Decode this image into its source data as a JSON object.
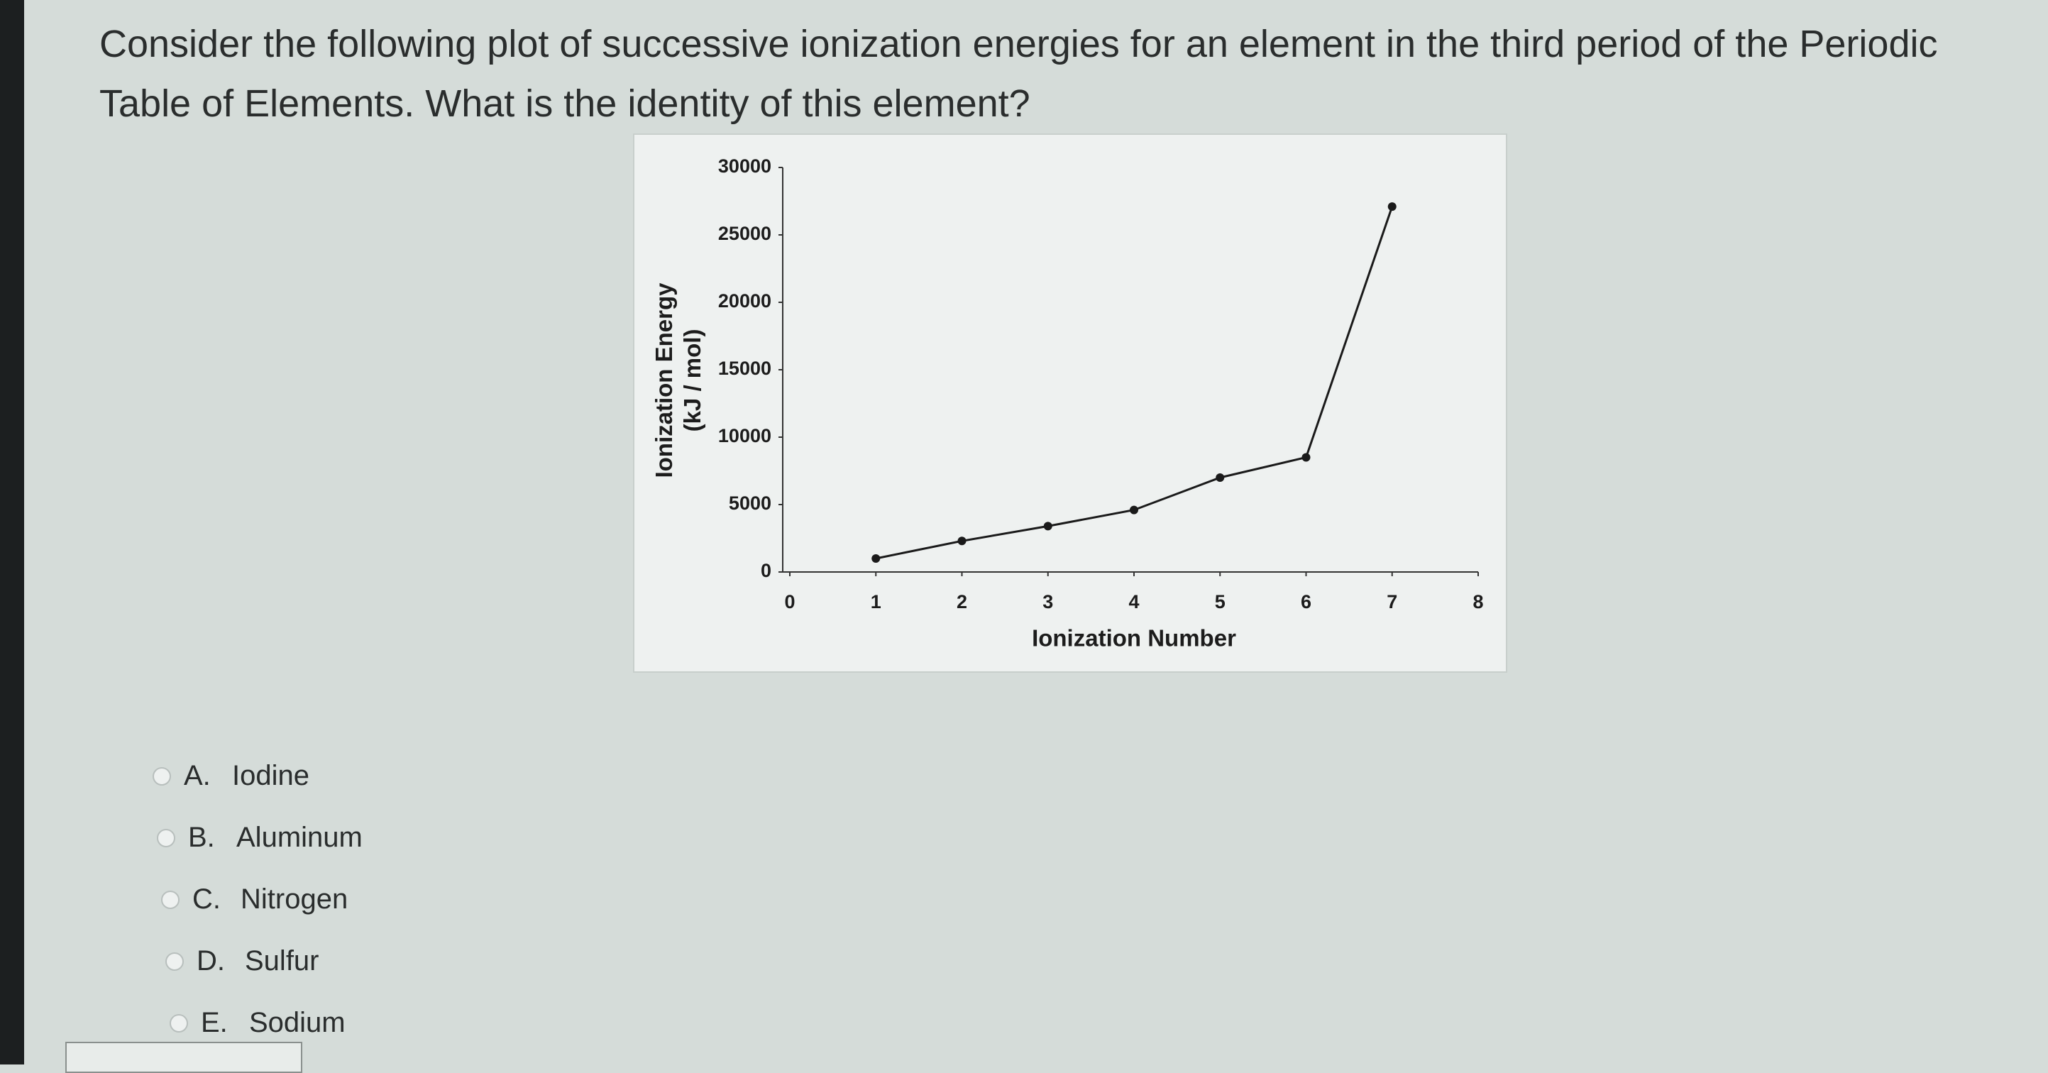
{
  "question": "Consider the following plot of successive ionization energies for an element in the third period of the Periodic Table of Elements. What is the identity of this element?",
  "chart_data": {
    "type": "line",
    "x": [
      1,
      2,
      3,
      4,
      5,
      6,
      7
    ],
    "values": [
      1000,
      2300,
      3400,
      4600,
      7000,
      8500,
      27100
    ],
    "color": "#1a1a1a",
    "xlim": [
      0,
      8
    ],
    "xticks": [
      0,
      1,
      2,
      3,
      4,
      5,
      6,
      7,
      8
    ],
    "ylim": [
      0,
      30000
    ],
    "yticks": [
      0,
      5000,
      10000,
      15000,
      20000,
      25000,
      30000
    ],
    "x_label": "Ionization Number",
    "y_label": [
      "Ionization Energy",
      "(kJ / mol)"
    ],
    "grid": false
  },
  "options": [
    {
      "letter": "A.",
      "text": "Iodine"
    },
    {
      "letter": "B.",
      "text": "Aluminum"
    },
    {
      "letter": "C.",
      "text": "Nitrogen"
    },
    {
      "letter": "D.",
      "text": "Sulfur"
    },
    {
      "letter": "E.",
      "text": "Sodium"
    }
  ]
}
